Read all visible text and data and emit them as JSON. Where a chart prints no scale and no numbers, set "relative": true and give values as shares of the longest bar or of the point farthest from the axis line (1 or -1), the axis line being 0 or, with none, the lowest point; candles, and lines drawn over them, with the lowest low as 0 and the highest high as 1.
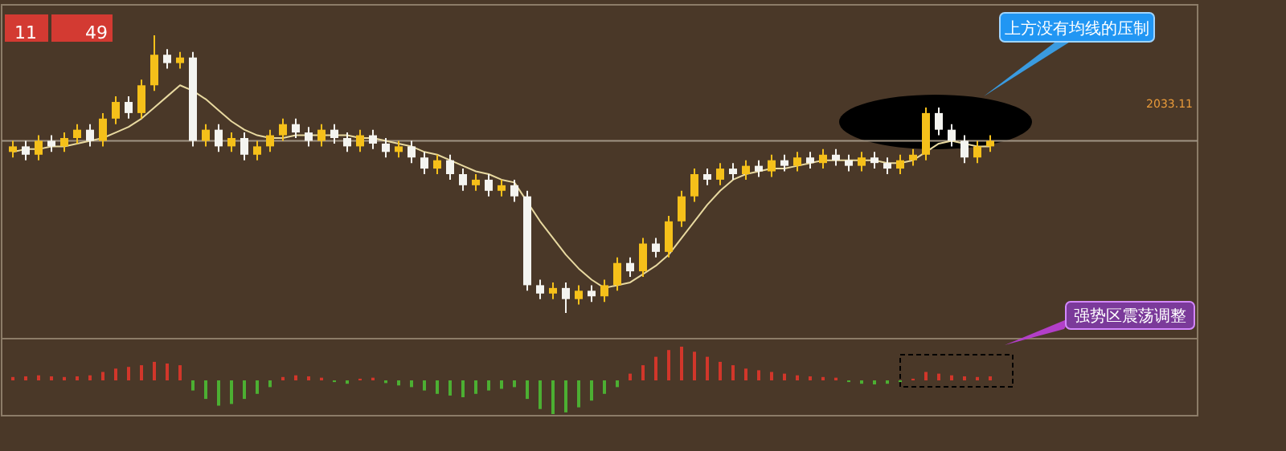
{
  "chart_data": [
    {
      "type": "candlestick",
      "relative": true,
      "categories": [
        null,
        null,
        null,
        null,
        null,
        null,
        null,
        null,
        null,
        null,
        null,
        null,
        null,
        null,
        null,
        null,
        null,
        null,
        null,
        null,
        null,
        null,
        null,
        null,
        null,
        null,
        null,
        null,
        null,
        null,
        null,
        null,
        null,
        null,
        null,
        null,
        null,
        null,
        null,
        null,
        null,
        null,
        null,
        null,
        null,
        null,
        null,
        null,
        null,
        null,
        null,
        null,
        null,
        null,
        null,
        null,
        null,
        null,
        null,
        null,
        null,
        null,
        null,
        null,
        null,
        null,
        null,
        null,
        null,
        null,
        null,
        null,
        null,
        null,
        null,
        null,
        null
      ],
      "ohlc": [
        [
          0.58,
          0.62,
          0.56,
          0.6
        ],
        [
          0.6,
          0.62,
          0.55,
          0.57
        ],
        [
          0.57,
          0.64,
          0.55,
          0.62
        ],
        [
          0.62,
          0.64,
          0.58,
          0.6
        ],
        [
          0.6,
          0.65,
          0.58,
          0.63
        ],
        [
          0.63,
          0.68,
          0.61,
          0.66
        ],
        [
          0.66,
          0.68,
          0.6,
          0.62
        ],
        [
          0.62,
          0.72,
          0.6,
          0.7
        ],
        [
          0.7,
          0.78,
          0.68,
          0.76
        ],
        [
          0.76,
          0.78,
          0.7,
          0.72
        ],
        [
          0.72,
          0.84,
          0.7,
          0.82
        ],
        [
          0.82,
          1.0,
          0.8,
          0.93
        ],
        [
          0.93,
          0.95,
          0.88,
          0.9
        ],
        [
          0.9,
          0.94,
          0.88,
          0.92
        ],
        [
          0.92,
          0.94,
          0.6,
          0.62
        ],
        [
          0.62,
          0.68,
          0.6,
          0.66
        ],
        [
          0.66,
          0.68,
          0.58,
          0.6
        ],
        [
          0.6,
          0.65,
          0.58,
          0.63
        ],
        [
          0.63,
          0.65,
          0.55,
          0.57
        ],
        [
          0.57,
          0.62,
          0.55,
          0.6
        ],
        [
          0.6,
          0.66,
          0.58,
          0.64
        ],
        [
          0.64,
          0.7,
          0.62,
          0.68
        ],
        [
          0.68,
          0.7,
          0.63,
          0.65
        ],
        [
          0.65,
          0.67,
          0.6,
          0.62
        ],
        [
          0.62,
          0.68,
          0.6,
          0.66
        ],
        [
          0.66,
          0.68,
          0.61,
          0.63
        ],
        [
          0.63,
          0.65,
          0.58,
          0.6
        ],
        [
          0.6,
          0.66,
          0.58,
          0.64
        ],
        [
          0.64,
          0.66,
          0.59,
          0.61
        ],
        [
          0.61,
          0.63,
          0.56,
          0.58
        ],
        [
          0.58,
          0.62,
          0.56,
          0.6
        ],
        [
          0.6,
          0.62,
          0.54,
          0.56
        ],
        [
          0.56,
          0.58,
          0.5,
          0.52
        ],
        [
          0.52,
          0.57,
          0.5,
          0.55
        ],
        [
          0.55,
          0.57,
          0.48,
          0.5
        ],
        [
          0.5,
          0.52,
          0.44,
          0.46
        ],
        [
          0.46,
          0.5,
          0.44,
          0.48
        ],
        [
          0.48,
          0.5,
          0.42,
          0.44
        ],
        [
          0.44,
          0.48,
          0.42,
          0.46
        ],
        [
          0.46,
          0.48,
          0.4,
          0.42
        ],
        [
          0.42,
          0.44,
          0.08,
          0.1
        ],
        [
          0.1,
          0.12,
          0.05,
          0.07
        ],
        [
          0.07,
          0.11,
          0.05,
          0.09
        ],
        [
          0.09,
          0.11,
          0,
          0.05
        ],
        [
          0.05,
          0.1,
          0.03,
          0.08
        ],
        [
          0.08,
          0.1,
          0.04,
          0.06
        ],
        [
          0.06,
          0.12,
          0.04,
          0.1
        ],
        [
          0.1,
          0.2,
          0.08,
          0.18
        ],
        [
          0.18,
          0.2,
          0.13,
          0.15
        ],
        [
          0.15,
          0.27,
          0.13,
          0.25
        ],
        [
          0.25,
          0.27,
          0.2,
          0.22
        ],
        [
          0.22,
          0.35,
          0.2,
          0.33
        ],
        [
          0.33,
          0.44,
          0.31,
          0.42
        ],
        [
          0.42,
          0.52,
          0.4,
          0.5
        ],
        [
          0.5,
          0.52,
          0.46,
          0.48
        ],
        [
          0.48,
          0.54,
          0.46,
          0.52
        ],
        [
          0.52,
          0.54,
          0.48,
          0.5
        ],
        [
          0.5,
          0.55,
          0.48,
          0.53
        ],
        [
          0.53,
          0.55,
          0.49,
          0.51
        ],
        [
          0.51,
          0.57,
          0.49,
          0.55
        ],
        [
          0.55,
          0.57,
          0.51,
          0.53
        ],
        [
          0.53,
          0.58,
          0.51,
          0.56
        ],
        [
          0.56,
          0.58,
          0.52,
          0.54
        ],
        [
          0.54,
          0.59,
          0.52,
          0.57
        ],
        [
          0.57,
          0.59,
          0.53,
          0.55
        ],
        [
          0.55,
          0.57,
          0.51,
          0.53
        ],
        [
          0.53,
          0.58,
          0.51,
          0.56
        ],
        [
          0.56,
          0.58,
          0.52,
          0.54
        ],
        [
          0.54,
          0.56,
          0.5,
          0.52
        ],
        [
          0.52,
          0.57,
          0.5,
          0.55
        ],
        [
          0.55,
          0.59,
          0.53,
          0.57
        ],
        [
          0.57,
          0.74,
          0.55,
          0.72
        ],
        [
          0.72,
          0.74,
          0.64,
          0.66
        ],
        [
          0.66,
          0.68,
          0.6,
          0.62
        ],
        [
          0.62,
          0.64,
          0.54,
          0.56
        ],
        [
          0.56,
          0.62,
          0.54,
          0.6
        ],
        [
          0.6,
          0.64,
          0.58,
          0.62
        ]
      ],
      "series": [
        {
          "type": "line",
          "color": "#e8d9a0",
          "values": [
            0.58,
            0.59,
            0.59,
            0.6,
            0.6,
            0.61,
            0.62,
            0.63,
            0.65,
            0.67,
            0.7,
            0.74,
            0.78,
            0.82,
            0.8,
            0.77,
            0.73,
            0.69,
            0.66,
            0.64,
            0.63,
            0.63,
            0.64,
            0.64,
            0.64,
            0.64,
            0.64,
            0.63,
            0.63,
            0.62,
            0.61,
            0.6,
            0.58,
            0.57,
            0.55,
            0.53,
            0.51,
            0.5,
            0.48,
            0.47,
            0.4,
            0.33,
            0.27,
            0.21,
            0.16,
            0.12,
            0.09,
            0.1,
            0.11,
            0.14,
            0.17,
            0.21,
            0.27,
            0.33,
            0.39,
            0.44,
            0.48,
            0.5,
            0.51,
            0.52,
            0.52,
            0.53,
            0.54,
            0.55,
            0.55,
            0.55,
            0.55,
            0.55,
            0.54,
            0.54,
            0.55,
            0.58,
            0.61,
            0.62,
            0.61,
            0.6,
            0.6
          ]
        }
      ],
      "ref_lines": [
        {
          "axis": "y",
          "value": 0.62,
          "color": "#a09484"
        }
      ],
      "annotations": [
        "上方没有均线的压制",
        "强势区震荡调整",
        "2033.11",
        "11",
        "49"
      ]
    },
    {
      "type": "bar",
      "relative": true,
      "categories": [
        null,
        null,
        null,
        null,
        null,
        null,
        null,
        null,
        null,
        null,
        null,
        null,
        null,
        null,
        null,
        null,
        null,
        null,
        null,
        null,
        null,
        null,
        null,
        null,
        null,
        null,
        null,
        null,
        null,
        null,
        null,
        null,
        null,
        null,
        null,
        null,
        null,
        null,
        null,
        null,
        null,
        null,
        null,
        null,
        null,
        null,
        null,
        null,
        null,
        null,
        null,
        null,
        null,
        null,
        null,
        null,
        null,
        null,
        null,
        null,
        null,
        null,
        null,
        null,
        null,
        null,
        null,
        null,
        null,
        null,
        null,
        null,
        null,
        null,
        null,
        null,
        null
      ],
      "series": [
        {
          "color": "#d2362a",
          "values": [
            0.1,
            0.12,
            0.15,
            0.12,
            0.1,
            0.12,
            0.15,
            0.25,
            0.35,
            0.4,
            0.45,
            0.55,
            0.5,
            0.45,
            null,
            null,
            null,
            null,
            null,
            null,
            null,
            0.1,
            0.15,
            0.12,
            0.08,
            null,
            null,
            0.05,
            0.08,
            null,
            null,
            null,
            null,
            null,
            null,
            null,
            null,
            null,
            null,
            null,
            null,
            null,
            null,
            null,
            null,
            null,
            null,
            null,
            0.2,
            0.45,
            0.7,
            0.9,
            1.0,
            0.85,
            0.7,
            0.55,
            0.45,
            0.35,
            0.3,
            0.25,
            0.2,
            0.15,
            0.12,
            0.1,
            0.08,
            null,
            null,
            null,
            null,
            null,
            0.05,
            0.25,
            0.2,
            0.15,
            0.12,
            0.1,
            0.12
          ]
        },
        {
          "color": "#4caf32",
          "values": [
            null,
            null,
            null,
            null,
            null,
            null,
            null,
            null,
            null,
            null,
            null,
            null,
            null,
            null,
            -0.3,
            -0.55,
            -0.75,
            -0.7,
            -0.55,
            -0.4,
            -0.2,
            null,
            null,
            null,
            null,
            -0.05,
            -0.1,
            null,
            null,
            -0.08,
            -0.15,
            -0.2,
            -0.3,
            -0.4,
            -0.45,
            -0.5,
            -0.4,
            -0.3,
            -0.25,
            -0.2,
            -0.55,
            -0.85,
            -1.0,
            -0.95,
            -0.8,
            -0.6,
            -0.4,
            -0.2,
            null,
            null,
            null,
            null,
            null,
            null,
            null,
            null,
            null,
            null,
            null,
            null,
            null,
            null,
            null,
            null,
            null,
            -0.05,
            -0.1,
            -0.12,
            -0.1,
            -0.05,
            null,
            null,
            null,
            null,
            null,
            null,
            null
          ]
        }
      ]
    }
  ]
}
